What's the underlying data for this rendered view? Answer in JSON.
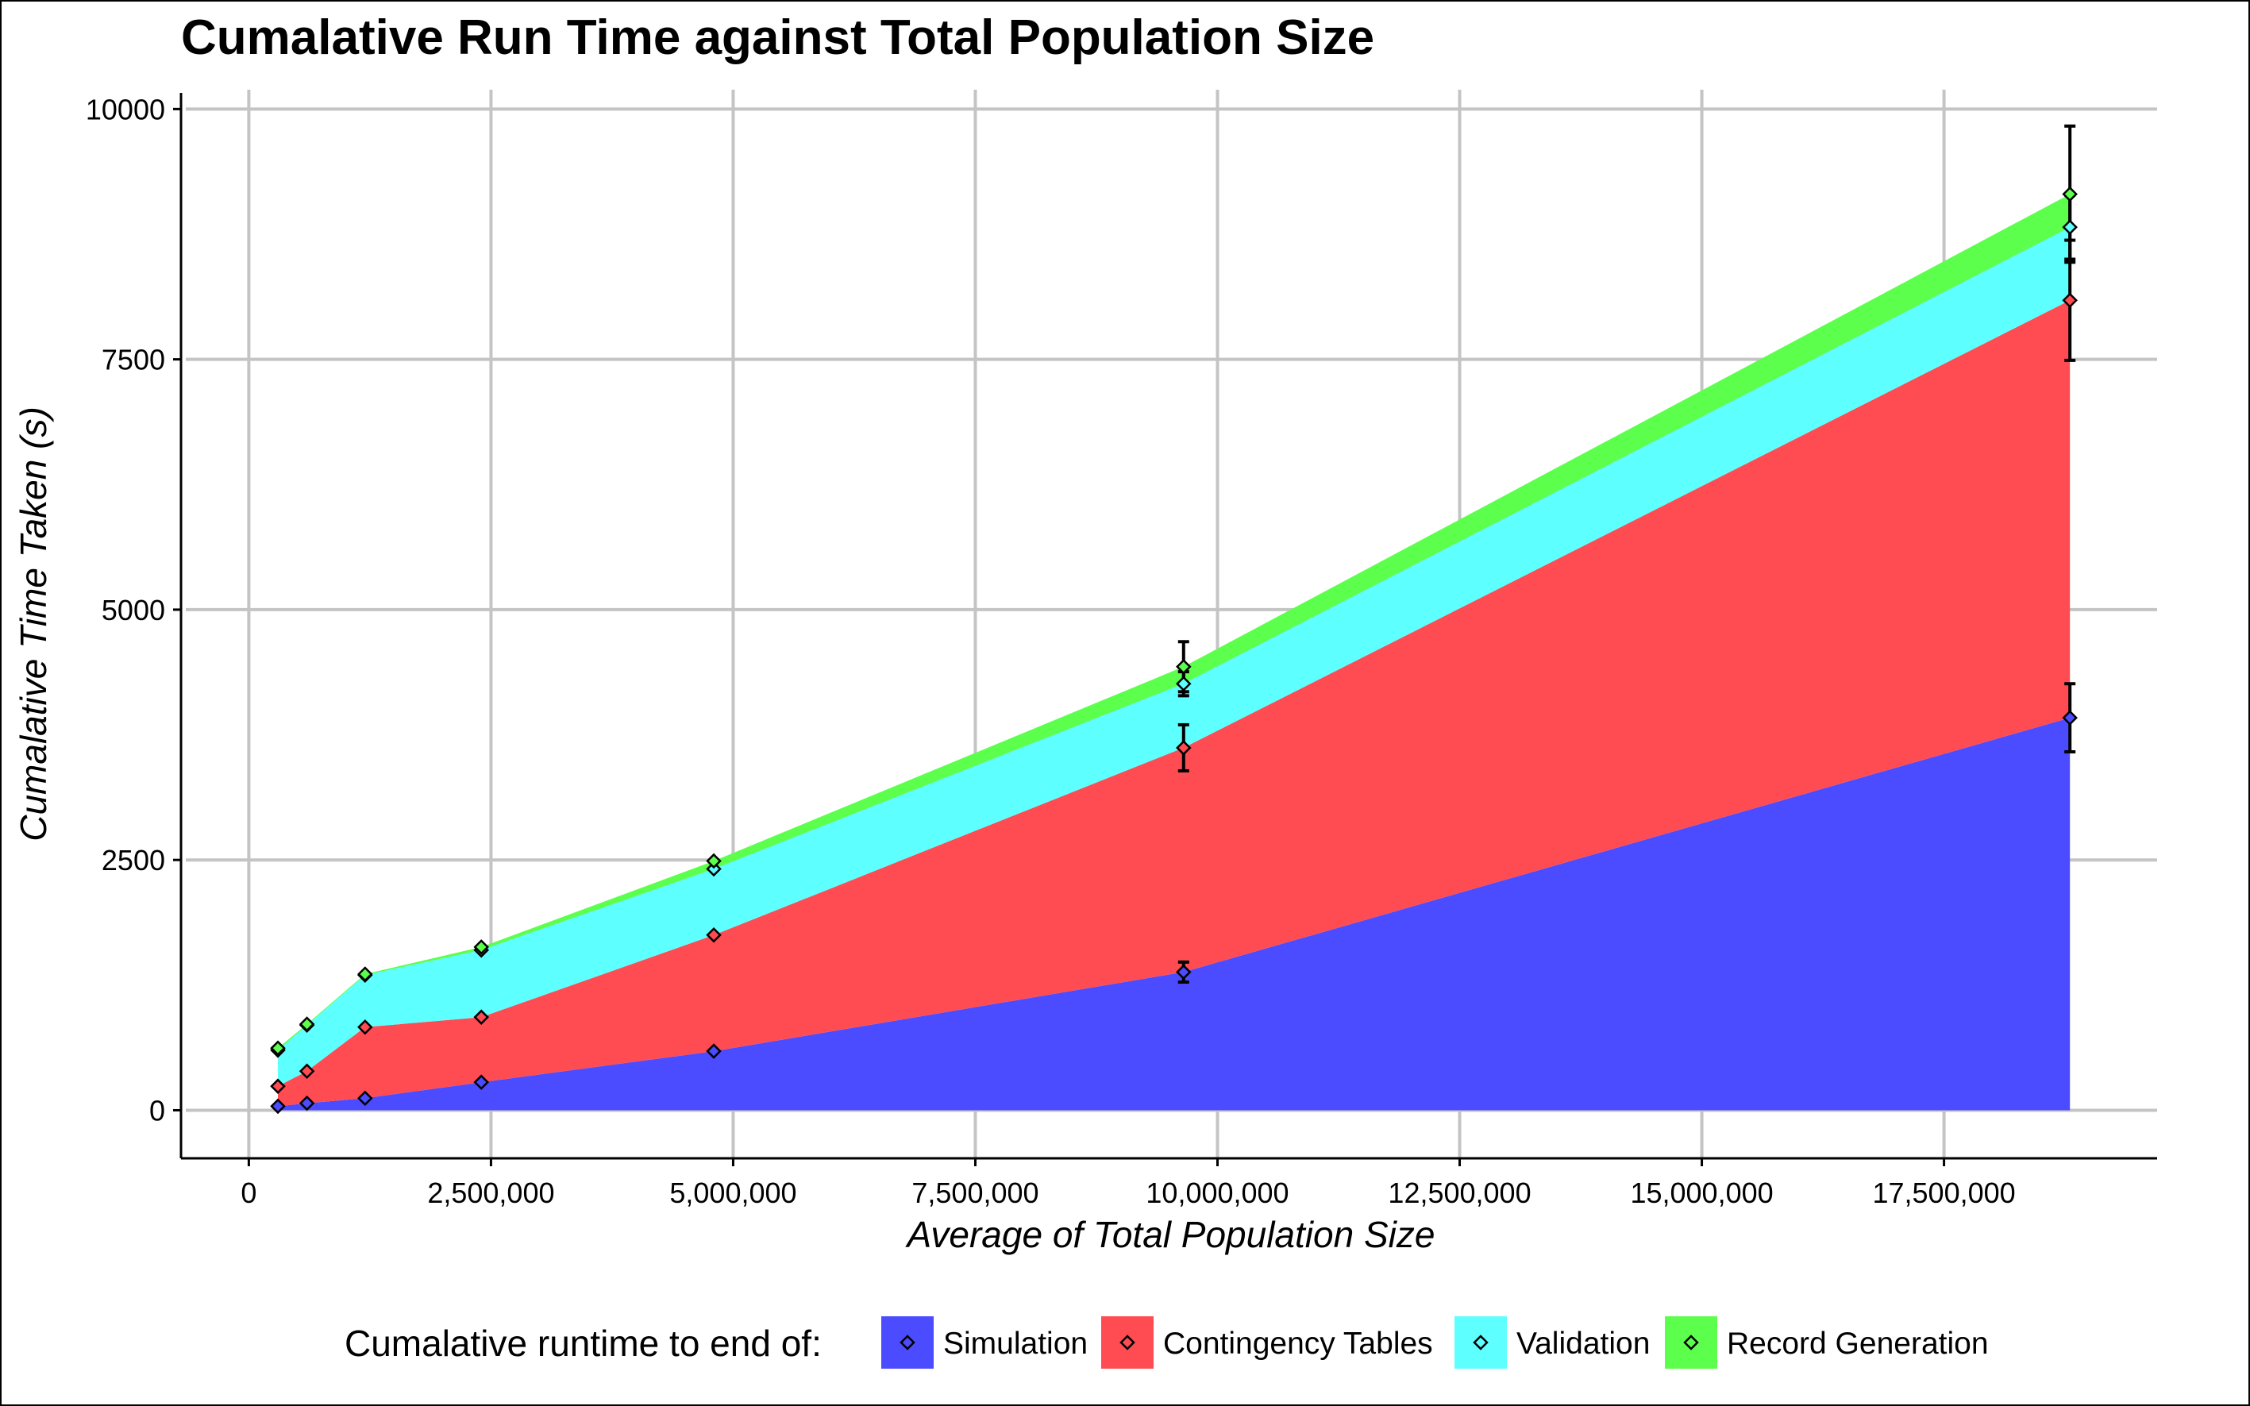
{
  "chart_data": {
    "type": "area",
    "stacked": true,
    "title": "Cumalative Run Time against Total Population Size",
    "xlabel": "Average of Total Population Size",
    "ylabel": "Cumalative Time Taken (s)",
    "xlim": [
      -700000,
      19700000
    ],
    "ylim": [
      -480,
      10320
    ],
    "x_ticks": [
      0,
      2500000,
      5000000,
      7500000,
      10000000,
      12500000,
      15000000,
      17500000
    ],
    "x_tick_labels": [
      "0",
      "2,500,000",
      "5,000,000",
      "7,500,000",
      "10,000,000",
      "12,500,000",
      "15,000,000",
      "17,500,000"
    ],
    "y_ticks": [
      0,
      2500,
      5000,
      7500,
      10000
    ],
    "y_tick_labels": [
      "0",
      "2500",
      "5000",
      "7500",
      "10000"
    ],
    "grid": true,
    "legend_position": "bottom",
    "legend_title": "Cumalative runtime to end of:",
    "x": [
      300000,
      600000,
      1200000,
      2400000,
      4800000,
      9650000,
      18800000
    ],
    "series": [
      {
        "name": "Simulation",
        "color": "#4b4bff",
        "values": [
          40,
          70,
          120,
          280,
          590,
          1380,
          3920
        ],
        "error": [
          null,
          null,
          null,
          null,
          null,
          100,
          340
        ]
      },
      {
        "name": "Contingency Tables",
        "color": "#ff4b52",
        "values": [
          240,
          390,
          830,
          930,
          1750,
          3620,
          8090
        ],
        "error": [
          null,
          null,
          null,
          null,
          null,
          230,
          600
        ]
      },
      {
        "name": "Validation",
        "color": "#5effff",
        "values": [
          600,
          850,
          1350,
          1600,
          2410,
          4260,
          8820
        ],
        "error": [
          null,
          null,
          null,
          null,
          null,
          120,
          320
        ]
      },
      {
        "name": "Record Generation",
        "color": "#5cff4c",
        "values": [
          620,
          860,
          1360,
          1630,
          2490,
          4430,
          9150
        ],
        "error": [
          null,
          null,
          null,
          null,
          null,
          250,
          680
        ]
      }
    ]
  }
}
